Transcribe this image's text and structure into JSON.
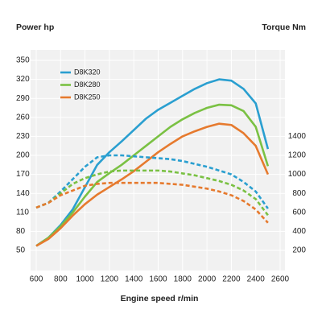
{
  "chart_data": {
    "type": "line",
    "y_label": "Power hp",
    "y2_label": "Torque Nm",
    "x_label": "Engine speed r/min",
    "x": [
      600,
      700,
      800,
      900,
      1000,
      1100,
      1200,
      1300,
      1400,
      1500,
      1600,
      1700,
      1800,
      1900,
      2000,
      2100,
      2200,
      2300,
      2400,
      2500
    ],
    "xlim": [
      600,
      2600
    ],
    "xticks": [
      600,
      800,
      1000,
      1200,
      1400,
      1600,
      1800,
      2000,
      2200,
      2400,
      2600
    ],
    "ylim": [
      20,
      365
    ],
    "yticks": [
      50,
      80,
      110,
      140,
      170,
      200,
      230,
      260,
      290,
      320,
      350
    ],
    "y2lim": [
      0,
      2300
    ],
    "y2ticks": [
      200,
      400,
      600,
      800,
      1000,
      1200,
      1400
    ],
    "grid": true,
    "legend": "top-left",
    "series": [
      {
        "name": "D8K320",
        "color": "#2a9fd0",
        "values": [
          57,
          70,
          90,
          115,
          150,
          185,
          205,
          222,
          240,
          258,
          272,
          283,
          294,
          305,
          314,
          320,
          318,
          305,
          282,
          210
        ]
      },
      {
        "name": "D8K280",
        "color": "#7ac143",
        "values": [
          57,
          70,
          88,
          110,
          135,
          158,
          172,
          185,
          200,
          215,
          230,
          245,
          257,
          267,
          275,
          280,
          279,
          270,
          245,
          183
        ]
      },
      {
        "name": "D8K250",
        "color": "#e67a2e",
        "values": [
          57,
          68,
          85,
          105,
          123,
          138,
          150,
          162,
          175,
          190,
          205,
          218,
          230,
          238,
          245,
          250,
          248,
          235,
          215,
          170
        ]
      },
      {
        "color": "#2a9fd0",
        "axis": "y2",
        "dashed": true,
        "values": [
          650,
          700,
          820,
          950,
          1080,
          1180,
          1200,
          1200,
          1190,
          1180,
          1170,
          1160,
          1140,
          1110,
          1080,
          1040,
          1000,
          920,
          820,
          640
        ]
      },
      {
        "color": "#7ac143",
        "axis": "y2",
        "dashed": true,
        "values": [
          650,
          700,
          800,
          900,
          960,
          1000,
          1030,
          1040,
          1040,
          1040,
          1040,
          1030,
          1010,
          990,
          960,
          930,
          890,
          830,
          740,
          570
        ]
      },
      {
        "color": "#e67a2e",
        "axis": "y2",
        "dashed": true,
        "values": [
          650,
          700,
          780,
          830,
          880,
          900,
          910,
          910,
          910,
          910,
          910,
          900,
          890,
          870,
          850,
          820,
          780,
          720,
          630,
          490
        ]
      }
    ]
  }
}
